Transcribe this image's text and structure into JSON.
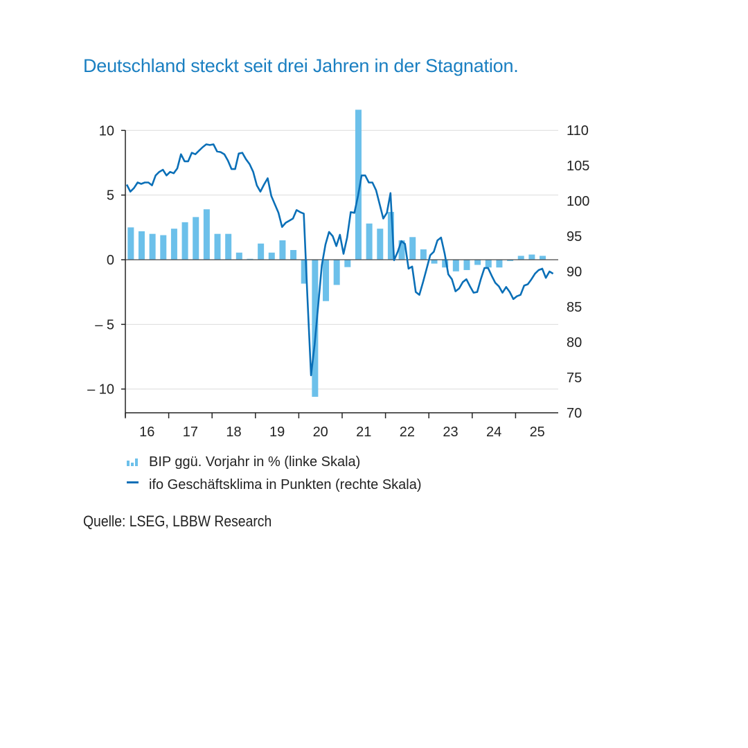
{
  "chart_data": {
    "type": "bar+line",
    "title": "Deutschland steckt seit drei Jahren in der Stagnation.",
    "source": "Quelle: LSEG, LBBW Research",
    "colors": {
      "bars": "#6cc0ea",
      "line": "#0a6fb7",
      "title": "#1a7fc1"
    },
    "x_tick_labels": [
      "16",
      "17",
      "18",
      "19",
      "20",
      "21",
      "22",
      "23",
      "24",
      "25"
    ],
    "left_axis": {
      "ticks": [
        10,
        5,
        0,
        -5,
        -10
      ],
      "tick_labels": [
        "10",
        "5",
        "0",
        "– 5",
        "– 10"
      ],
      "ylim": [
        -12,
        10
      ]
    },
    "right_axis": {
      "ticks": [
        110,
        105,
        100,
        95,
        90,
        85,
        80,
        75,
        70
      ],
      "tick_labels": [
        "110",
        "105",
        "100",
        "95",
        "90",
        "85",
        "80",
        "75",
        "70"
      ],
      "ylim": [
        70,
        110
      ]
    },
    "grid": true,
    "legend": {
      "placement": "bottom",
      "entries": [
        "BIP ggü. Vorjahr in % (linke Skala)",
        "ifo Geschäftsklima in Punkten (rechte Skala)"
      ]
    },
    "series": [
      {
        "name": "BIP ggü. Vorjahr in % (linke Skala)",
        "type": "bar",
        "axis": "left",
        "categories": [
          "2016-Q1",
          "2016-Q2",
          "2016-Q3",
          "2016-Q4",
          "2017-Q1",
          "2017-Q2",
          "2017-Q3",
          "2017-Q4",
          "2018-Q1",
          "2018-Q2",
          "2018-Q3",
          "2018-Q4",
          "2019-Q1",
          "2019-Q2",
          "2019-Q3",
          "2019-Q4",
          "2020-Q1",
          "2020-Q2",
          "2020-Q3",
          "2020-Q4",
          "2021-Q1",
          "2021-Q2",
          "2021-Q3",
          "2021-Q4",
          "2022-Q1",
          "2022-Q2",
          "2022-Q3",
          "2022-Q4",
          "2023-Q1",
          "2023-Q2",
          "2023-Q3",
          "2023-Q4",
          "2024-Q1",
          "2024-Q2",
          "2024-Q3",
          "2024-Q4",
          "2025-Q1",
          "2025-Q2",
          "2025-Q3"
        ],
        "values": [
          2.5,
          2.2,
          2.0,
          1.9,
          2.4,
          2.9,
          3.3,
          3.9,
          2.0,
          2.0,
          0.55,
          0.07,
          1.25,
          0.55,
          1.5,
          0.75,
          -1.85,
          -10.6,
          -3.2,
          -1.95,
          -0.57,
          11.6,
          2.8,
          2.4,
          3.7,
          1.5,
          1.75,
          0.8,
          -0.3,
          -0.6,
          -0.9,
          -0.8,
          -0.4,
          -0.6,
          -0.6,
          -0.1,
          0.3,
          0.4,
          0.3
        ]
      },
      {
        "name": "ifo Geschäftsklima in Punkten (rechte Skala)",
        "type": "line",
        "axis": "right",
        "points": [
          [
            "2016-01",
            102.3
          ],
          [
            "2016-02",
            101.3
          ],
          [
            "2016-03",
            101.8
          ],
          [
            "2016-04",
            102.6
          ],
          [
            "2016-05",
            102.4
          ],
          [
            "2016-06",
            102.6
          ],
          [
            "2016-07",
            102.6
          ],
          [
            "2016-08",
            102.2
          ],
          [
            "2016-09",
            103.6
          ],
          [
            "2016-10",
            104.1
          ],
          [
            "2016-11",
            104.4
          ],
          [
            "2016-12",
            103.6
          ],
          [
            "2017-01",
            104.1
          ],
          [
            "2017-02",
            103.9
          ],
          [
            "2017-03",
            104.6
          ],
          [
            "2017-04",
            106.6
          ],
          [
            "2017-05",
            105.6
          ],
          [
            "2017-06",
            105.6
          ],
          [
            "2017-07",
            106.8
          ],
          [
            "2017-08",
            106.6
          ],
          [
            "2017-09",
            107.1
          ],
          [
            "2017-10",
            107.6
          ],
          [
            "2017-11",
            108.0
          ],
          [
            "2017-12",
            107.9
          ],
          [
            "2018-01",
            108.0
          ],
          [
            "2018-02",
            107.0
          ],
          [
            "2018-03",
            106.9
          ],
          [
            "2018-04",
            106.6
          ],
          [
            "2018-05",
            105.7
          ],
          [
            "2018-06",
            104.5
          ],
          [
            "2018-07",
            104.5
          ],
          [
            "2018-08",
            106.7
          ],
          [
            "2018-09",
            106.8
          ],
          [
            "2018-10",
            105.9
          ],
          [
            "2018-11",
            105.2
          ],
          [
            "2018-12",
            104.1
          ],
          [
            "2019-01",
            102.2
          ],
          [
            "2019-02",
            101.3
          ],
          [
            "2019-03",
            102.3
          ],
          [
            "2019-04",
            103.2
          ],
          [
            "2019-05",
            100.7
          ],
          [
            "2019-06",
            99.5
          ],
          [
            "2019-07",
            98.3
          ],
          [
            "2019-08",
            96.3
          ],
          [
            "2019-09",
            96.9
          ],
          [
            "2019-10",
            97.2
          ],
          [
            "2019-11",
            97.5
          ],
          [
            "2019-12",
            98.7
          ],
          [
            "2020-01",
            98.4
          ],
          [
            "2020-02",
            98.2
          ],
          [
            "2020-03",
            86.5
          ],
          [
            "2020-04",
            75.3
          ],
          [
            "2020-05",
            79.7
          ],
          [
            "2020-06",
            85.3
          ],
          [
            "2020-07",
            90.9
          ],
          [
            "2020-08",
            93.8
          ],
          [
            "2020-09",
            95.6
          ],
          [
            "2020-10",
            95.0
          ],
          [
            "2020-11",
            93.6
          ],
          [
            "2020-12",
            95.2
          ],
          [
            "2021-01",
            92.5
          ],
          [
            "2021-02",
            94.8
          ],
          [
            "2021-03",
            98.4
          ],
          [
            "2021-04",
            98.3
          ],
          [
            "2021-05",
            100.7
          ],
          [
            "2021-06",
            103.6
          ],
          [
            "2021-07",
            103.6
          ],
          [
            "2021-08",
            102.6
          ],
          [
            "2021-09",
            102.6
          ],
          [
            "2021-10",
            101.5
          ],
          [
            "2021-11",
            99.5
          ],
          [
            "2021-12",
            97.5
          ],
          [
            "2022-01",
            98.3
          ],
          [
            "2022-02",
            101.1
          ],
          [
            "2022-03",
            91.6
          ],
          [
            "2022-04",
            92.8
          ],
          [
            "2022-05",
            94.3
          ],
          [
            "2022-06",
            93.9
          ],
          [
            "2022-07",
            90.4
          ],
          [
            "2022-08",
            90.7
          ],
          [
            "2022-09",
            87.1
          ],
          [
            "2022-10",
            86.7
          ],
          [
            "2022-11",
            88.5
          ],
          [
            "2022-12",
            90.4
          ],
          [
            "2023-01",
            92.3
          ],
          [
            "2023-02",
            92.8
          ],
          [
            "2023-03",
            94.4
          ],
          [
            "2023-04",
            94.8
          ],
          [
            "2023-05",
            92.5
          ],
          [
            "2023-06",
            89.6
          ],
          [
            "2023-07",
            88.9
          ],
          [
            "2023-08",
            87.2
          ],
          [
            "2023-09",
            87.6
          ],
          [
            "2023-10",
            88.5
          ],
          [
            "2023-11",
            88.9
          ],
          [
            "2023-12",
            87.9
          ],
          [
            "2024-01",
            87.0
          ],
          [
            "2024-02",
            87.1
          ],
          [
            "2024-03",
            88.9
          ],
          [
            "2024-04",
            90.5
          ],
          [
            "2024-05",
            90.5
          ],
          [
            "2024-06",
            89.4
          ],
          [
            "2024-07",
            88.4
          ],
          [
            "2024-08",
            87.9
          ],
          [
            "2024-09",
            87.0
          ],
          [
            "2024-10",
            87.8
          ],
          [
            "2024-11",
            87.1
          ],
          [
            "2024-12",
            86.1
          ],
          [
            "2025-01",
            86.5
          ],
          [
            "2025-02",
            86.7
          ],
          [
            "2025-03",
            88.0
          ],
          [
            "2025-04",
            88.2
          ],
          [
            "2025-05",
            88.9
          ],
          [
            "2025-06",
            89.7
          ],
          [
            "2025-07",
            90.2
          ],
          [
            "2025-08",
            90.4
          ],
          [
            "2025-09",
            89.1
          ],
          [
            "2025-10",
            90.0
          ],
          [
            "2025-11",
            89.7
          ]
        ]
      }
    ]
  }
}
